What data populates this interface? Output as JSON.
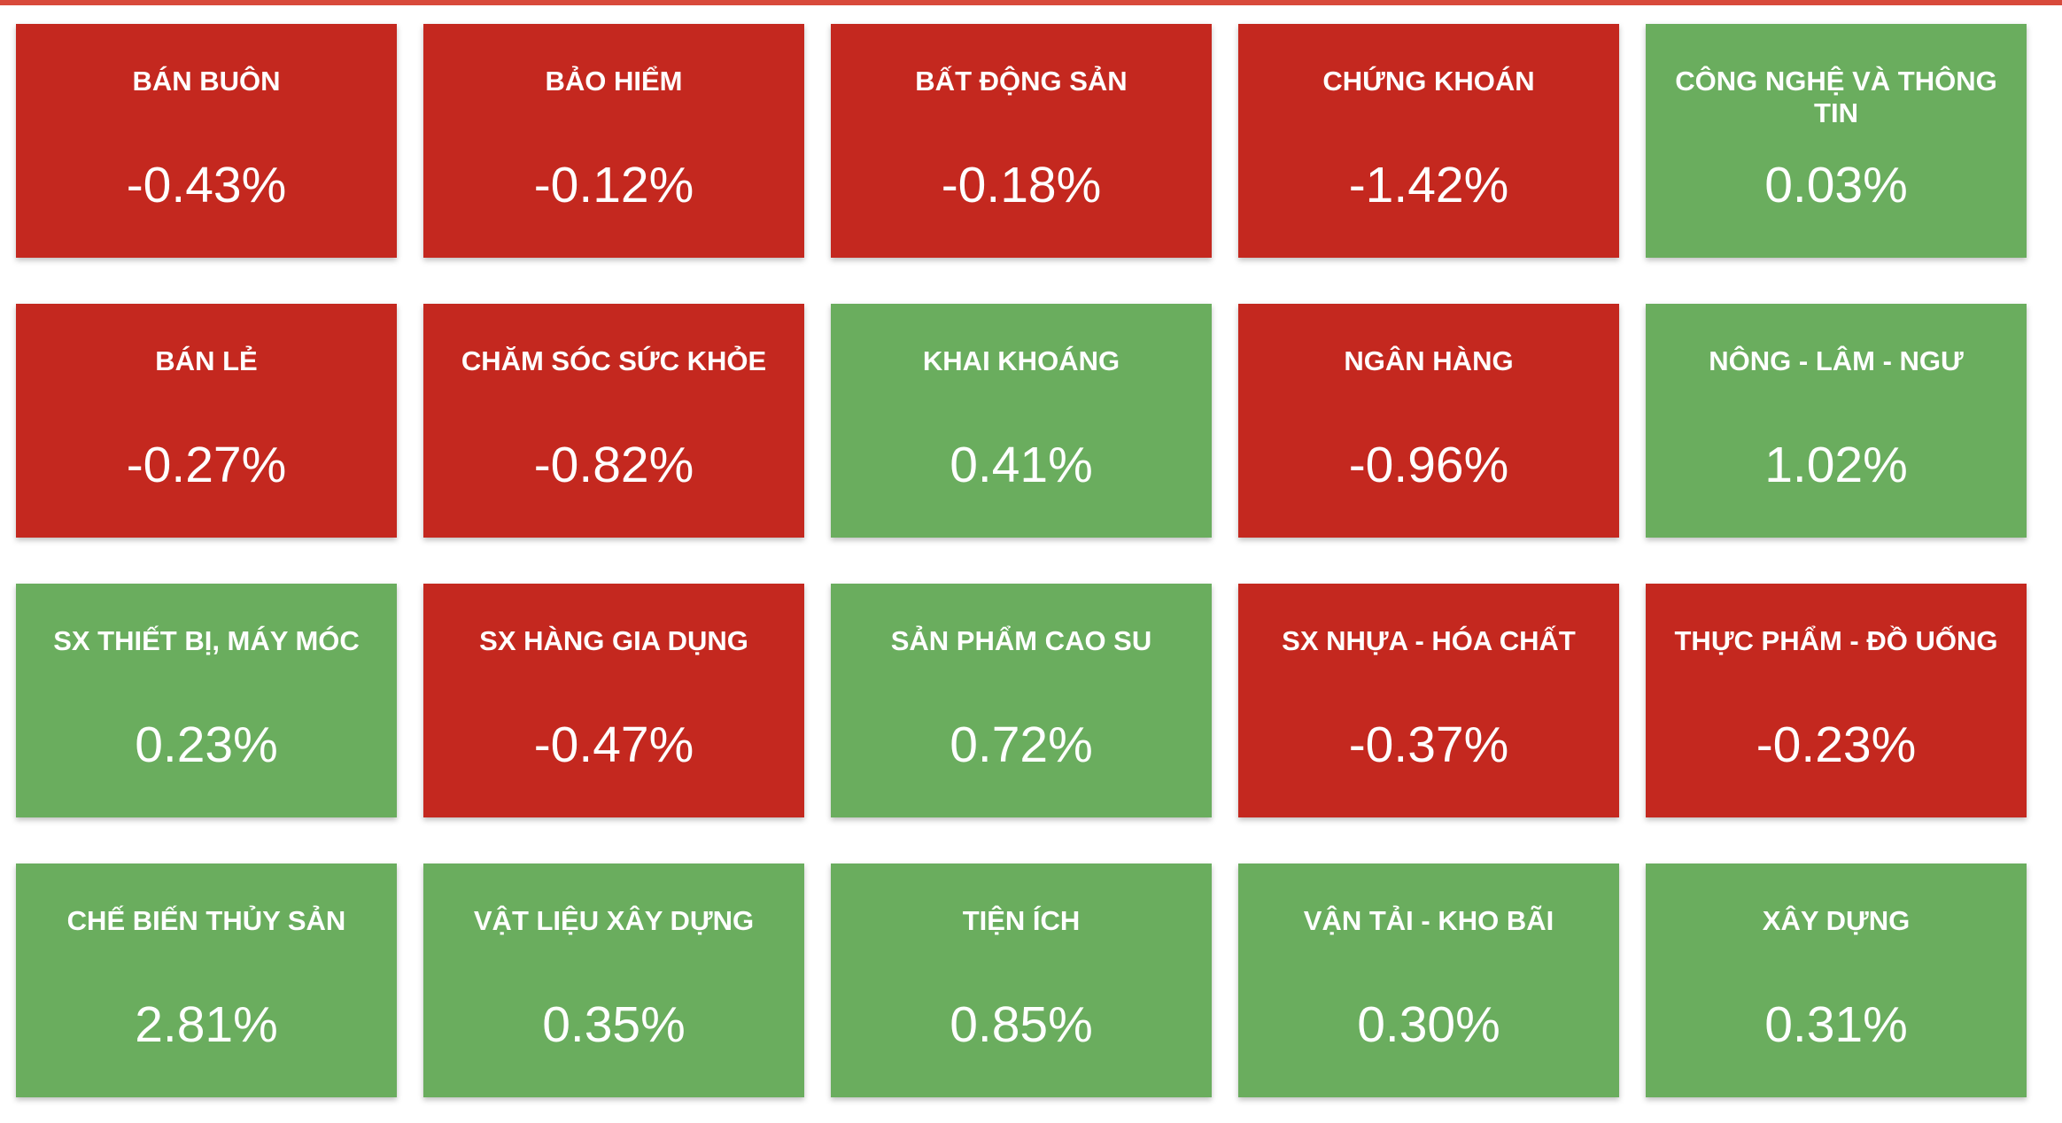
{
  "tiles": [
    {
      "label": "BÁN BUÔN",
      "value": -0.43,
      "value_label": "-0.43%"
    },
    {
      "label": "BẢO HIỂM",
      "value": -0.12,
      "value_label": "-0.12%"
    },
    {
      "label": "BẤT ĐỘNG SẢN",
      "value": -0.18,
      "value_label": "-0.18%"
    },
    {
      "label": "CHỨNG KHOÁN",
      "value": -1.42,
      "value_label": "-1.42%"
    },
    {
      "label": "CÔNG NGHỆ VÀ THÔNG TIN",
      "value": 0.03,
      "value_label": "0.03%"
    },
    {
      "label": "BÁN LẺ",
      "value": -0.27,
      "value_label": "-0.27%"
    },
    {
      "label": "CHĂM SÓC SỨC KHỎE",
      "value": -0.82,
      "value_label": "-0.82%"
    },
    {
      "label": "KHAI KHOÁNG",
      "value": 0.41,
      "value_label": "0.41%"
    },
    {
      "label": "NGÂN HÀNG",
      "value": -0.96,
      "value_label": "-0.96%"
    },
    {
      "label": "NÔNG - LÂM - NGƯ",
      "value": 1.02,
      "value_label": "1.02%"
    },
    {
      "label": "SX THIẾT BỊ, MÁY MÓC",
      "value": 0.23,
      "value_label": "0.23%"
    },
    {
      "label": "SX HÀNG GIA DỤNG",
      "value": -0.47,
      "value_label": "-0.47%"
    },
    {
      "label": "SẢN PHẨM CAO SU",
      "value": 0.72,
      "value_label": "0.72%"
    },
    {
      "label": "SX NHỰA - HÓA CHẤT",
      "value": -0.37,
      "value_label": "-0.37%"
    },
    {
      "label": "THỰC PHẨM - ĐỒ UỐNG",
      "value": -0.23,
      "value_label": "-0.23%"
    },
    {
      "label": "CHẾ BIẾN THỦY SẢN",
      "value": 2.81,
      "value_label": "2.81%"
    },
    {
      "label": "VẬT LIỆU XÂY DỰNG",
      "value": 0.35,
      "value_label": "0.35%"
    },
    {
      "label": "TIỆN ÍCH",
      "value": 0.85,
      "value_label": "0.85%"
    },
    {
      "label": "VẬN TẢI - KHO BÃI",
      "value": 0.3,
      "value_label": "0.30%"
    },
    {
      "label": "XÂY DỰNG",
      "value": 0.31,
      "value_label": "0.31%"
    }
  ],
  "colors": {
    "up": "#6aad5e",
    "down": "#c4281f"
  }
}
